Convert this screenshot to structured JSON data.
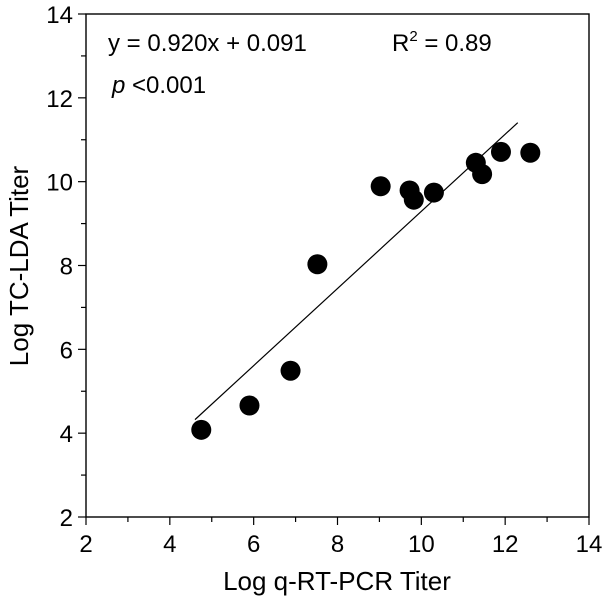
{
  "chart_data": {
    "type": "scatter",
    "title": "",
    "xlabel": "Log q-RT-PCR Titer",
    "ylabel": "Log TC-LDA Titer",
    "xlim": [
      2,
      14
    ],
    "ylim": [
      2,
      14
    ],
    "x_ticks": [
      2,
      4,
      6,
      8,
      10,
      12,
      14
    ],
    "y_ticks": [
      2,
      4,
      6,
      8,
      10,
      12,
      14
    ],
    "x_minor_ticks": [
      3,
      5,
      7,
      9,
      11,
      13
    ],
    "y_minor_ticks": [
      3,
      5,
      7,
      9,
      11,
      13
    ],
    "grid": false,
    "points": [
      {
        "x": 4.75,
        "y": 4.08
      },
      {
        "x": 5.9,
        "y": 4.66
      },
      {
        "x": 6.88,
        "y": 5.49
      },
      {
        "x": 7.52,
        "y": 8.03
      },
      {
        "x": 9.03,
        "y": 9.89
      },
      {
        "x": 9.72,
        "y": 9.79
      },
      {
        "x": 9.82,
        "y": 9.57
      },
      {
        "x": 10.3,
        "y": 9.74
      },
      {
        "x": 11.3,
        "y": 10.45
      },
      {
        "x": 11.45,
        "y": 10.18
      },
      {
        "x": 11.9,
        "y": 10.71
      },
      {
        "x": 12.6,
        "y": 10.69
      }
    ],
    "fit_line": {
      "slope": 0.92,
      "intercept": 0.091,
      "x_start": 4.6,
      "x_end": 12.3
    },
    "annotations": {
      "equation": "y = 0.920x + 0.091",
      "r_squared_prefix": "R",
      "r_squared_exponent": "2",
      "r_squared_value": " = 0.89",
      "p_symbol": "p",
      "p_value": " <0.001"
    }
  }
}
